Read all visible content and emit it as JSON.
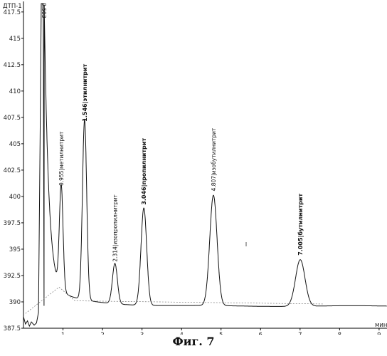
{
  "caption": "Фиг. 7",
  "chart_data": {
    "type": "line",
    "ylabel": "ДТП-1",
    "xlabel": "мин",
    "ylim": [
      387.5,
      418.5
    ],
    "xlim": [
      0,
      9.2
    ],
    "y_ticks": [
      "387.5",
      "390",
      "392.5",
      "395",
      "397.5",
      "400",
      "402.5",
      "405",
      "407.5",
      "410",
      "412.5",
      "415",
      "417.5"
    ],
    "x_ticks": [
      "1",
      "2",
      "3",
      "4",
      "5",
      "6",
      "7",
      "8",
      "9"
    ],
    "solvent_peak": {
      "label": "0.503",
      "rt": 0.503
    },
    "peaks": [
      {
        "rt": 0.955,
        "label": "0.955|метилнитрит",
        "apex": 400.6
      },
      {
        "rt": 1.546,
        "label": "1.546|этилнитрит",
        "apex": 406.7
      },
      {
        "rt": 2.314,
        "label": "2.314|изопропилнитрит",
        "apex": 393.4
      },
      {
        "rt": 3.046,
        "label": "3.046|пропилнитрит",
        "apex": 398.8
      },
      {
        "rt": 4.807,
        "label": "4.807|изобутилнитрит",
        "apex": 400.1
      },
      {
        "rt": 7.005,
        "label": "7.005|бутилнитрит",
        "apex": 394.0
      }
    ]
  }
}
